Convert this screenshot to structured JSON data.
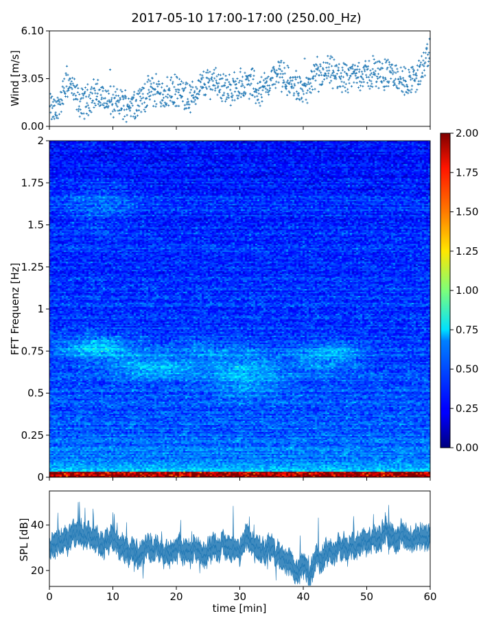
{
  "title": "2017-05-10 17:00-17:00 (250.00_Hz)",
  "chart_data": [
    {
      "type": "scatter",
      "name": "wind",
      "ylabel": "Wind [m/s]",
      "xlim": [
        0,
        60
      ],
      "ylim": [
        0,
        6.1
      ],
      "yticks": [
        "0.00",
        "3.05",
        "6.10"
      ],
      "ytick_values": [
        0,
        3.05,
        6.1
      ],
      "color": "#1f77b4",
      "marker": "+",
      "trend": {
        "x": [
          0,
          1,
          2,
          3,
          4,
          5,
          6,
          7,
          8,
          10,
          12,
          14,
          16,
          18,
          20,
          22,
          24,
          26,
          28,
          30,
          32,
          33,
          34,
          36,
          38,
          40,
          42,
          44,
          46,
          48,
          50,
          52,
          54,
          56,
          58,
          60
        ],
        "y": [
          1.2,
          0.9,
          1.9,
          2.9,
          2.0,
          1.4,
          1.7,
          2.1,
          1.9,
          1.5,
          1.4,
          1.6,
          2.3,
          2.0,
          2.3,
          1.7,
          2.6,
          3.0,
          2.3,
          2.6,
          2.8,
          2.0,
          2.6,
          3.4,
          2.7,
          2.2,
          3.0,
          3.5,
          3.1,
          3.3,
          3.3,
          3.4,
          3.3,
          2.8,
          3.2,
          4.6
        ]
      }
    },
    {
      "type": "heatmap",
      "name": "spectrogram",
      "ylabel": "FFT Frequenz [Hz]",
      "xlim": [
        0,
        60
      ],
      "ylim": [
        0,
        2
      ],
      "yticks": [
        "0",
        "0.25",
        "0.5",
        "0.75",
        "1",
        "1.25",
        "1.5",
        "1.75",
        "2"
      ],
      "ytick_values": [
        0,
        0.25,
        0.5,
        0.75,
        1,
        1.25,
        1.5,
        1.75,
        2
      ],
      "colormap": "jet",
      "colorbar": {
        "range": [
          0,
          2
        ],
        "ticks": [
          "0.00",
          "0.25",
          "0.50",
          "0.75",
          "1.00",
          "1.25",
          "1.50",
          "1.75",
          "2.00"
        ],
        "tick_values": [
          0,
          0.25,
          0.5,
          0.75,
          1.0,
          1.25,
          1.5,
          1.75,
          2.0
        ]
      }
    },
    {
      "type": "area",
      "name": "spl",
      "xlabel": "time [min]",
      "ylabel": "SPL [dB]",
      "xlim": [
        0,
        60
      ],
      "ylim": [
        13,
        55
      ],
      "xticks": [
        "0",
        "10",
        "20",
        "30",
        "40",
        "50",
        "60"
      ],
      "xtick_values": [
        0,
        10,
        20,
        30,
        40,
        50,
        60
      ],
      "yticks": [
        "20",
        "40"
      ],
      "ytick_values": [
        20,
        40
      ],
      "color": "#1f77b4",
      "trend": {
        "x": [
          0,
          2,
          4,
          6,
          8,
          10,
          12,
          14,
          16,
          18,
          20,
          22,
          24,
          26,
          28,
          30,
          31,
          32,
          34,
          35,
          36,
          38,
          39,
          40,
          41,
          42,
          44,
          46,
          48,
          50,
          52,
          53,
          54,
          56,
          58,
          60
        ],
        "y": [
          31,
          33,
          37,
          35,
          32,
          33,
          29,
          27,
          30,
          28,
          27,
          29,
          27,
          30,
          31,
          29,
          34,
          32,
          28,
          32,
          27,
          23,
          20,
          21,
          19,
          24,
          29,
          31,
          30,
          33,
          34,
          38,
          34,
          35,
          33,
          35
        ]
      }
    }
  ]
}
